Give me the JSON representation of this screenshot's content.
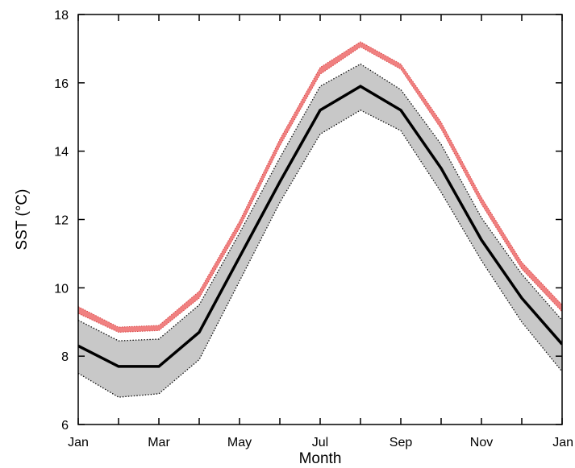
{
  "chart_data": {
    "type": "line",
    "title": "",
    "xlabel": "Month",
    "ylabel": "SST (°C)",
    "ylim": [
      6,
      18
    ],
    "yticks": [
      6,
      8,
      10,
      12,
      14,
      16,
      18
    ],
    "x": [
      "Jan",
      "Feb",
      "Mar",
      "Apr",
      "May",
      "Jun",
      "Jul",
      "Aug",
      "Sep",
      "Oct",
      "Nov",
      "Dec",
      "Jan"
    ],
    "xtick_labels": [
      "Jan",
      "Mar",
      "May",
      "Jul",
      "Sep",
      "Nov",
      "Jan"
    ],
    "grid": false,
    "series": [
      {
        "values": [
          8.3,
          7.7,
          7.7,
          8.7,
          10.9,
          13.1,
          15.2,
          15.9,
          15.2,
          13.5,
          11.4,
          9.7,
          8.35
        ],
        "color": "#000000"
      },
      {
        "values_low": [
          7.5,
          6.8,
          6.9,
          7.9,
          10.2,
          12.5,
          14.5,
          15.2,
          14.6,
          12.8,
          10.8,
          9.0,
          7.55
        ],
        "values_high": [
          9.05,
          8.45,
          8.5,
          9.5,
          11.6,
          13.8,
          15.9,
          16.55,
          15.8,
          14.2,
          12.05,
          10.4,
          9.05
        ],
        "color": "#c8c8c8"
      },
      {
        "values_low": [
          9.25,
          8.7,
          8.75,
          9.7,
          11.75,
          14.15,
          16.25,
          17.05,
          16.4,
          14.65,
          12.45,
          10.55,
          9.3
        ],
        "values_high": [
          9.45,
          8.85,
          8.9,
          9.9,
          11.95,
          14.35,
          16.45,
          17.2,
          16.55,
          14.85,
          12.65,
          10.75,
          9.5
        ],
        "color": "#f08080"
      }
    ]
  }
}
